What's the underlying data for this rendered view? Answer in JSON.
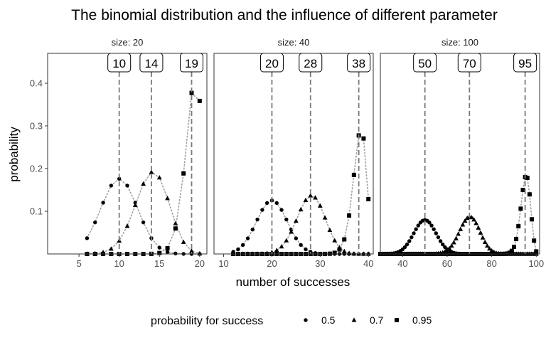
{
  "chart_data": {
    "type": "scatter",
    "title": "The binomial distribution and the influence of different parameter",
    "xlabel": "number of successes",
    "ylabel": "probability",
    "ylim": [
      0,
      0.47
    ],
    "yticks": [
      0.1,
      0.2,
      0.3,
      0.4
    ],
    "legend": {
      "title": "probability for success",
      "position": "bottom",
      "entries": [
        {
          "label": "0.5",
          "shape": "circle"
        },
        {
          "label": "0.7",
          "shape": "triangle"
        },
        {
          "label": "0.95",
          "shape": "square"
        }
      ]
    },
    "panels": [
      {
        "strip": "size: 20",
        "size": 20,
        "xlim": [
          1.1,
          20.9
        ],
        "xticks": [
          5,
          10,
          15,
          20
        ],
        "modes": [
          {
            "label": "10",
            "x": 10
          },
          {
            "label": "14",
            "x": 14
          },
          {
            "label": "19",
            "x": 19
          }
        ]
      },
      {
        "strip": "size: 40",
        "size": 40,
        "xlim": [
          8.0,
          41.0
        ],
        "xticks": [
          10,
          20,
          30,
          40
        ],
        "modes": [
          {
            "label": "20",
            "x": 20
          },
          {
            "label": "28",
            "x": 28
          },
          {
            "label": "38",
            "x": 38
          }
        ]
      },
      {
        "strip": "size: 100",
        "size": 100,
        "xlim": [
          30.0,
          101.5
        ],
        "xticks": [
          40,
          60,
          80,
          100
        ],
        "modes": [
          {
            "label": "50",
            "x": 50
          },
          {
            "label": "70",
            "x": 70
          },
          {
            "label": "95",
            "x": 95
          }
        ]
      }
    ],
    "series": [
      {
        "name": "0.5",
        "p": 0.5,
        "shape": "circle"
      },
      {
        "name": "0.7",
        "p": 0.7,
        "shape": "triangle"
      },
      {
        "name": "0.95",
        "p": 0.95,
        "shape": "square"
      }
    ],
    "display_rule": "points shown where size*0.3 <= x <= size, pmf computed as Binomial(size, p)"
  }
}
